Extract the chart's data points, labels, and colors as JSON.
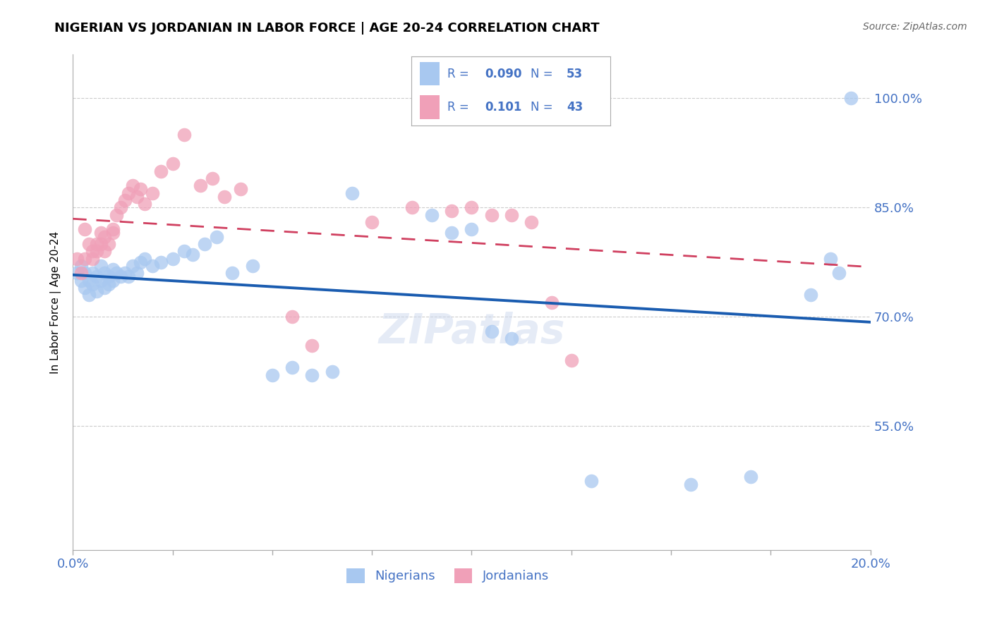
{
  "title": "NIGERIAN VS JORDANIAN IN LABOR FORCE | AGE 20-24 CORRELATION CHART",
  "source": "Source: ZipAtlas.com",
  "ylabel": "In Labor Force | Age 20-24",
  "r_nigerian": "0.090",
  "n_nigerian": 53,
  "r_jordanian": "0.101",
  "n_jordanian": 43,
  "blue_color": "#a8c8f0",
  "pink_color": "#f0a0b8",
  "line_blue": "#1a5cb0",
  "line_pink": "#d04060",
  "text_blue": "#4472c4",
  "xlim": [
    0.0,
    0.2
  ],
  "ylim": [
    0.38,
    1.06
  ],
  "nigerian_x": [
    0.001,
    0.002,
    0.002,
    0.003,
    0.003,
    0.004,
    0.004,
    0.005,
    0.005,
    0.006,
    0.006,
    0.007,
    0.007,
    0.008,
    0.008,
    0.009,
    0.009,
    0.01,
    0.01,
    0.011,
    0.012,
    0.013,
    0.014,
    0.015,
    0.016,
    0.017,
    0.018,
    0.02,
    0.022,
    0.025,
    0.028,
    0.03,
    0.033,
    0.036,
    0.04,
    0.045,
    0.05,
    0.055,
    0.06,
    0.065,
    0.07,
    0.09,
    0.095,
    0.1,
    0.105,
    0.11,
    0.13,
    0.155,
    0.17,
    0.185,
    0.19,
    0.192,
    0.195
  ],
  "nigerian_y": [
    0.76,
    0.77,
    0.75,
    0.76,
    0.74,
    0.75,
    0.73,
    0.76,
    0.745,
    0.755,
    0.735,
    0.77,
    0.75,
    0.76,
    0.74,
    0.755,
    0.745,
    0.765,
    0.75,
    0.76,
    0.755,
    0.76,
    0.755,
    0.77,
    0.76,
    0.775,
    0.78,
    0.77,
    0.775,
    0.78,
    0.79,
    0.785,
    0.8,
    0.81,
    0.76,
    0.77,
    0.62,
    0.63,
    0.62,
    0.625,
    0.87,
    0.84,
    0.815,
    0.82,
    0.68,
    0.67,
    0.475,
    0.47,
    0.48,
    0.73,
    0.78,
    0.76,
    1.0
  ],
  "jordanian_x": [
    0.001,
    0.002,
    0.003,
    0.003,
    0.004,
    0.005,
    0.005,
    0.006,
    0.006,
    0.007,
    0.007,
    0.008,
    0.008,
    0.009,
    0.01,
    0.01,
    0.011,
    0.012,
    0.013,
    0.014,
    0.015,
    0.016,
    0.017,
    0.018,
    0.02,
    0.022,
    0.025,
    0.028,
    0.032,
    0.035,
    0.038,
    0.042,
    0.055,
    0.06,
    0.075,
    0.085,
    0.095,
    0.1,
    0.105,
    0.11,
    0.115,
    0.12,
    0.125
  ],
  "jordanian_y": [
    0.78,
    0.76,
    0.82,
    0.78,
    0.8,
    0.79,
    0.78,
    0.8,
    0.79,
    0.815,
    0.8,
    0.79,
    0.81,
    0.8,
    0.82,
    0.815,
    0.84,
    0.85,
    0.86,
    0.87,
    0.88,
    0.865,
    0.875,
    0.855,
    0.87,
    0.9,
    0.91,
    0.95,
    0.88,
    0.89,
    0.865,
    0.875,
    0.7,
    0.66,
    0.83,
    0.85,
    0.845,
    0.85,
    0.84,
    0.84,
    0.83,
    0.72,
    0.64
  ],
  "ytick_vals": [
    0.55,
    0.7,
    0.85,
    1.0
  ],
  "ytick_labels": [
    "55.0%",
    "70.0%",
    "85.0%",
    "100.0%"
  ]
}
